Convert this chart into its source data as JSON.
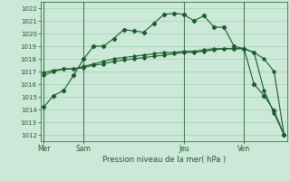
{
  "bg_color": "#cce8d8",
  "grid_color": "#99ccaa",
  "line_color": "#1a5c2a",
  "title": "Pression niveau de la mer( hPa )",
  "ylim": [
    1011.5,
    1022.5
  ],
  "yticks": [
    1012,
    1013,
    1014,
    1015,
    1016,
    1017,
    1018,
    1019,
    1020,
    1021,
    1022
  ],
  "xtick_labels": [
    "Mer",
    "Sam",
    "Jeu",
    "Ven"
  ],
  "xtick_positions": [
    0,
    4,
    14,
    20
  ],
  "total_points": 25,
  "line1_x": [
    0,
    1,
    2,
    3,
    4,
    5,
    6,
    7,
    8,
    9,
    10,
    11,
    12,
    13,
    14,
    15,
    16,
    17,
    18,
    19,
    20,
    21,
    22,
    23,
    24
  ],
  "line1": [
    1014.2,
    1015.1,
    1015.5,
    1016.7,
    1018.0,
    1019.0,
    1019.0,
    1019.6,
    1020.3,
    1020.2,
    1020.1,
    1020.8,
    1021.5,
    1021.6,
    1021.5,
    1021.0,
    1021.4,
    1020.5,
    1020.5,
    1019.0,
    1018.8,
    1016.0,
    1015.1,
    1013.9,
    1012.0
  ],
  "line2_x": [
    0,
    1,
    2,
    3,
    4,
    5,
    6,
    7,
    8,
    9,
    10,
    11,
    12,
    13,
    14,
    15,
    16,
    17,
    18,
    19,
    20,
    21,
    22,
    23,
    24
  ],
  "line2": [
    1016.7,
    1017.0,
    1017.2,
    1017.2,
    1017.4,
    1017.6,
    1017.8,
    1018.0,
    1018.1,
    1018.2,
    1018.3,
    1018.4,
    1018.5,
    1018.5,
    1018.6,
    1018.6,
    1018.7,
    1018.8,
    1018.8,
    1018.8,
    1018.8,
    1018.5,
    1018.0,
    1017.0,
    1012.0
  ],
  "line3_x": [
    0,
    1,
    2,
    3,
    4,
    5,
    6,
    7,
    8,
    9,
    10,
    11,
    12,
    13,
    14,
    15,
    16,
    17,
    18,
    19,
    20,
    21,
    22,
    23,
    24
  ],
  "line3": [
    1016.9,
    1017.1,
    1017.2,
    1017.2,
    1017.3,
    1017.5,
    1017.6,
    1017.8,
    1017.9,
    1018.0,
    1018.1,
    1018.2,
    1018.3,
    1018.4,
    1018.5,
    1018.5,
    1018.6,
    1018.7,
    1018.8,
    1018.8,
    1018.8,
    1018.5,
    1015.5,
    1013.7,
    1012.0
  ]
}
